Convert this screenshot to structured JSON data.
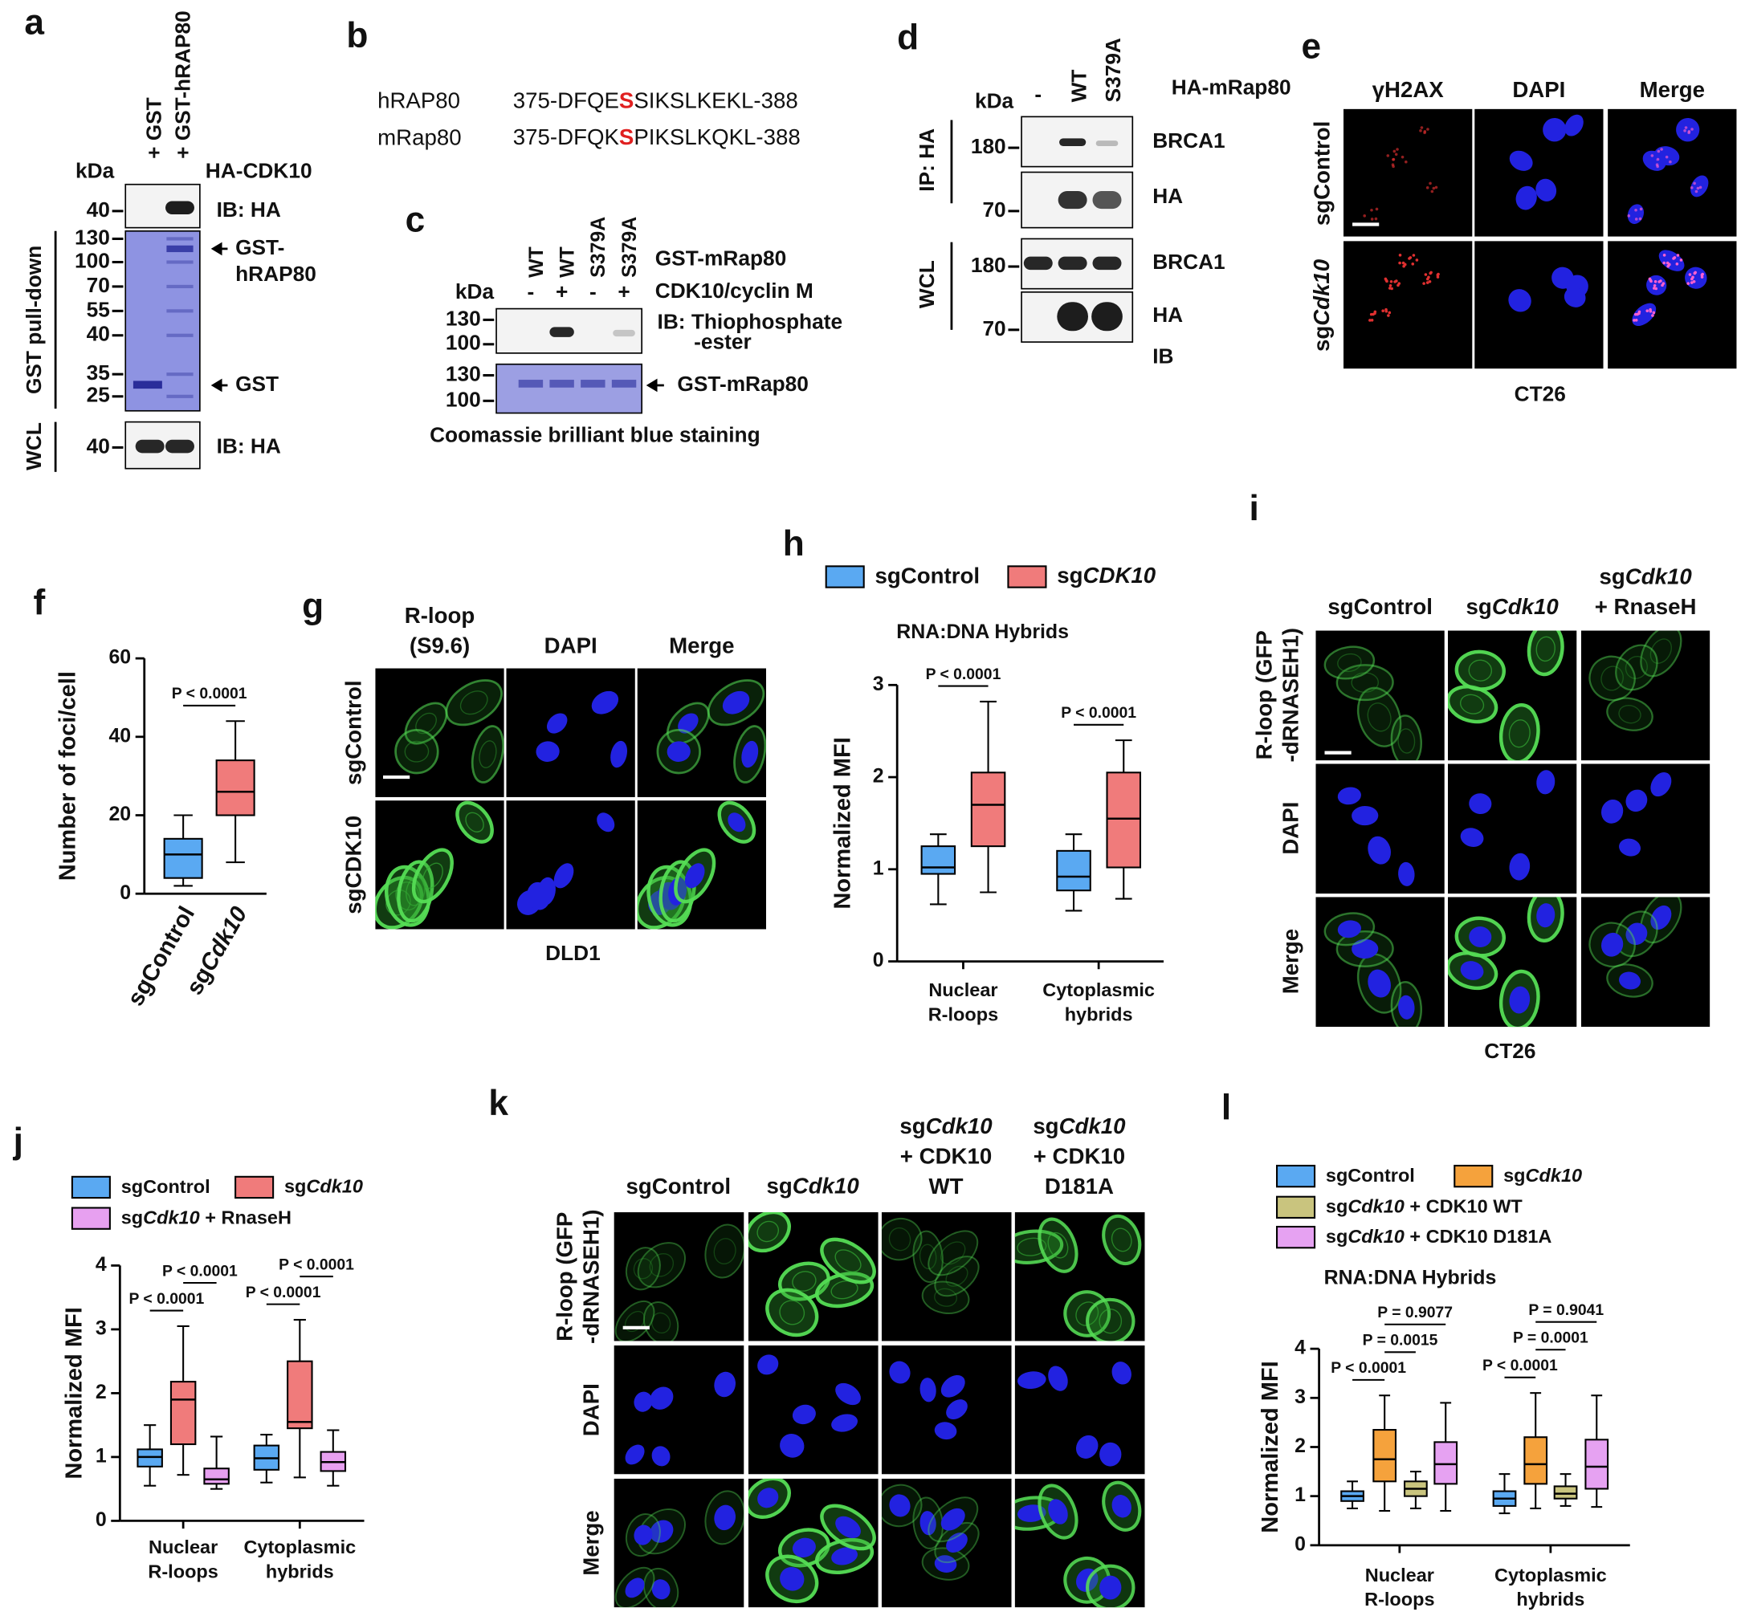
{
  "panels": {
    "a": {
      "letter": "a",
      "lanes": [
        "+ GST",
        "+ GST-hRAP80"
      ],
      "kda": "kDa",
      "probe": "HA-CDK10",
      "ib_top": {
        "marker": 40,
        "label": "IB: HA"
      },
      "gel": {
        "markers": [
          130,
          100,
          70,
          55,
          40,
          35,
          25
        ],
        "arrow_top": [
          "GST-",
          "hRAP80"
        ],
        "arrow_bottom": "GST"
      },
      "section": "GST pull-down",
      "wcl": {
        "section": "WCL",
        "marker": 40,
        "label": "IB: HA"
      }
    },
    "b": {
      "letter": "b",
      "rows": [
        {
          "name": "hRAP80",
          "sequence": "375-DFQESSIKSLKEKL-388"
        },
        {
          "name": "mRap80",
          "sequence": "375-DFQKSPIKSLKQKL-388"
        }
      ]
    },
    "c": {
      "letter": "c",
      "lanes": [
        "WT",
        "WT",
        "S379A",
        "S379A"
      ],
      "treatment": [
        "-",
        "+",
        "-",
        "+"
      ],
      "kda": "kDa",
      "row_labels": [
        "GST-mRap80",
        "CDK10/cyclin M"
      ],
      "blot": {
        "markers": [
          130,
          100
        ],
        "label": [
          "IB: Thiophosphate",
          "-ester"
        ]
      },
      "gel": {
        "markers": [
          130,
          100
        ],
        "label": "GST-mRap80"
      },
      "caption": "Coomassie brilliant blue staining"
    },
    "d": {
      "letter": "d",
      "lanes": [
        "-",
        "WT",
        "S379A"
      ],
      "probe": "HA-mRap80",
      "kda": "kDa",
      "sections": [
        {
          "name": "IP: HA",
          "blots": [
            {
              "marker": 180,
              "label": "BRCA1"
            },
            {
              "marker": 70,
              "label": "HA"
            }
          ]
        },
        {
          "name": "WCL",
          "blots": [
            {
              "marker": 180,
              "label": "BRCA1"
            },
            {
              "marker": 70,
              "label": "HA"
            }
          ]
        }
      ],
      "footer": "IB"
    },
    "e": {
      "letter": "e",
      "columns": [
        "γH2AX",
        "DAPI",
        "Merge"
      ],
      "rows": [
        "sgControl",
        "sgCdk10"
      ],
      "caption": "CT26"
    },
    "g": {
      "letter": "g",
      "columns": [
        [
          "R-loop",
          "(S9.6)"
        ],
        [
          "DAPI"
        ],
        [
          "Merge"
        ]
      ],
      "rows": [
        "sgControl",
        "sgCDK10"
      ],
      "caption": "DLD1"
    },
    "i": {
      "letter": "i",
      "columns": [
        [
          "sgControl"
        ],
        [
          "sgCdk10"
        ],
        [
          "sgCdk10",
          "+ RnaseH"
        ]
      ],
      "rows": [
        [
          "R-loop (GFP",
          "-dRNASEH1)"
        ],
        [
          "DAPI"
        ],
        [
          "Merge"
        ]
      ],
      "caption": "CT26"
    },
    "k": {
      "letter": "k",
      "columns": [
        [
          "sgControl"
        ],
        [
          "sgCdk10"
        ],
        [
          "sgCdk10",
          "+ CDK10",
          "WT"
        ],
        [
          "sgCdk10",
          "+ CDK10",
          "D181A"
        ]
      ],
      "rows": [
        [
          "R-loop (GFP",
          "-dRNASEH1)"
        ],
        [
          "DAPI"
        ],
        [
          "Merge"
        ]
      ]
    }
  },
  "chart_data": [
    {
      "type": "box",
      "letter": "f",
      "ylabel": "Number of foci/cell",
      "ylim": [
        0,
        60
      ],
      "yticks": [
        0,
        20,
        40,
        60
      ],
      "series": [
        {
          "name": "sgControl",
          "color": "#5aa9f2",
          "boxes": [
            {
              "min": 2,
              "q1": 4,
              "median": 10,
              "q3": 14,
              "max": 20
            }
          ]
        },
        {
          "name": "sgCdk10",
          "color": "#f07b7b",
          "boxes": [
            {
              "min": 8,
              "q1": 20,
              "median": 26,
              "q3": 34,
              "max": 44
            }
          ]
        }
      ],
      "comparisons": [
        [
          "P < 0.0001"
        ]
      ]
    },
    {
      "type": "box",
      "letter": "h",
      "title": "RNA:DNA Hybrids",
      "ylabel": "Normalized MFI",
      "ylim": [
        0,
        3
      ],
      "yticks": [
        0,
        1,
        2,
        3
      ],
      "categories": [
        [
          "Nuclear",
          "R-loops"
        ],
        [
          "Cytoplasmic",
          "hybrids"
        ]
      ],
      "series": [
        {
          "name": "sgControl",
          "color": "#5aa9f2",
          "boxes": [
            {
              "min": 0.62,
              "q1": 0.95,
              "median": 1.02,
              "q3": 1.25,
              "max": 1.38
            },
            {
              "min": 0.55,
              "q1": 0.77,
              "median": 0.92,
              "q3": 1.2,
              "max": 1.38
            }
          ]
        },
        {
          "name": "sgCDK10",
          "color": "#f07b7b",
          "boxes": [
            {
              "min": 0.75,
              "q1": 1.25,
              "median": 1.7,
              "q3": 2.05,
              "max": 2.82
            },
            {
              "min": 0.68,
              "q1": 1.02,
              "median": 1.55,
              "q3": 2.05,
              "max": 2.4
            }
          ]
        }
      ],
      "comparisons": [
        [
          "P < 0.0001"
        ],
        [
          "P < 0.0001"
        ]
      ]
    },
    {
      "type": "box",
      "letter": "j",
      "ylabel": "Normalized MFI",
      "ylim": [
        0,
        4
      ],
      "yticks": [
        0,
        1,
        2,
        3,
        4
      ],
      "categories": [
        [
          "Nuclear",
          "R-loops"
        ],
        [
          "Cytoplasmic",
          "hybrids"
        ]
      ],
      "series": [
        {
          "name": "sgControl",
          "color": "#5aa9f2",
          "boxes": [
            {
              "min": 0.55,
              "q1": 0.85,
              "median": 1.0,
              "q3": 1.12,
              "max": 1.5
            },
            {
              "min": 0.6,
              "q1": 0.8,
              "median": 0.98,
              "q3": 1.18,
              "max": 1.35
            }
          ]
        },
        {
          "name": "sgCdk10",
          "color": "#f07b7b",
          "boxes": [
            {
              "min": 0.72,
              "q1": 1.2,
              "median": 1.9,
              "q3": 2.18,
              "max": 3.05
            },
            {
              "min": 0.68,
              "q1": 1.45,
              "median": 1.55,
              "q3": 2.5,
              "max": 3.15
            }
          ]
        },
        {
          "name": "sgCdk10 + RnaseH",
          "color": "#e7a0f0",
          "boxes": [
            {
              "min": 0.5,
              "q1": 0.58,
              "median": 0.65,
              "q3": 0.82,
              "max": 1.32
            },
            {
              "min": 0.55,
              "q1": 0.78,
              "median": 0.92,
              "q3": 1.08,
              "max": 1.42
            }
          ]
        }
      ],
      "comparisons": [
        [
          "P < 0.0001",
          "P < 0.0001"
        ],
        [
          "P < 0.0001",
          "P < 0.0001"
        ]
      ]
    },
    {
      "type": "box",
      "letter": "l",
      "title": "RNA:DNA Hybrids",
      "ylabel": "Normalized MFI",
      "ylim": [
        0,
        4
      ],
      "yticks": [
        0,
        1,
        2,
        3,
        4
      ],
      "categories": [
        [
          "Nuclear",
          "R-loops"
        ],
        [
          "Cytoplasmic",
          "hybrids"
        ]
      ],
      "series": [
        {
          "name": "sgControl",
          "color": "#5aa9f2",
          "boxes": [
            {
              "min": 0.75,
              "q1": 0.9,
              "median": 1.0,
              "q3": 1.1,
              "max": 1.3
            },
            {
              "min": 0.65,
              "q1": 0.8,
              "median": 0.95,
              "q3": 1.1,
              "max": 1.45
            }
          ]
        },
        {
          "name": "sgCdk10",
          "color": "#f5a23c",
          "boxes": [
            {
              "min": 0.7,
              "q1": 1.3,
              "median": 1.75,
              "q3": 2.35,
              "max": 3.05
            },
            {
              "min": 0.75,
              "q1": 1.25,
              "median": 1.65,
              "q3": 2.2,
              "max": 3.1
            }
          ]
        },
        {
          "name": "sgCdk10 + CDK10 WT",
          "color": "#c9c47e",
          "boxes": [
            {
              "min": 0.75,
              "q1": 1.0,
              "median": 1.15,
              "q3": 1.3,
              "max": 1.5
            },
            {
              "min": 0.8,
              "q1": 0.95,
              "median": 1.05,
              "q3": 1.2,
              "max": 1.45
            }
          ]
        },
        {
          "name": "sgCdk10 + CDK10 D181A",
          "color": "#e6a2f2",
          "boxes": [
            {
              "min": 0.7,
              "q1": 1.25,
              "median": 1.65,
              "q3": 2.1,
              "max": 2.9
            },
            {
              "min": 0.78,
              "q1": 1.15,
              "median": 1.6,
              "q3": 2.15,
              "max": 3.05
            }
          ]
        }
      ],
      "comparisons": [
        [
          "P < 0.0001",
          "P = 0.0015",
          "P = 0.9077"
        ],
        [
          "P < 0.0001",
          "P = 0.0001",
          "P = 0.9041"
        ]
      ]
    }
  ]
}
